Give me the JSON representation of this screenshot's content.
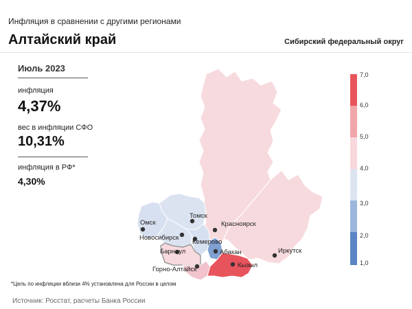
{
  "header": {
    "subtitle": "Инфляция  в сравнении  с другими регионами",
    "title": "Алтайский край",
    "district": "Сибирский федеральный округ"
  },
  "stats": {
    "period": "Июль 2023",
    "inflation_label": "инфляция",
    "inflation_value": "4,37%",
    "weight_label": "вес в инфляции  СФО",
    "weight_value": "10,31%",
    "rf_label": "инфляция  в РФ*",
    "rf_value": "4,30%"
  },
  "footnote": "*Цель по инфляции вблизи 4% установлена для России в целом",
  "source": "Источник: Росстат, расчеты Банка России",
  "legend": {
    "ticks": [
      "7,0",
      "6,0",
      "5,0",
      "4,0",
      "3,0",
      "2,0",
      "1,0"
    ],
    "colors": [
      "#e8545c",
      "#f1a6aa",
      "#f8d8dc",
      "#dde4f1",
      "#9db7dc",
      "#5b84c4"
    ]
  },
  "map": {
    "highlight_color": "#f2c8cf",
    "colors": {
      "krasnoyarsk": "#f7dade",
      "irkutsk": "#f7dade",
      "tyva": "#e8545c",
      "khakassia": "#7fa0d0",
      "kemerovo": "#d7e0f0",
      "novosibirsk": "#dbe3f1",
      "omsk": "#d7e0f0",
      "tomsk": "#dbe3f1",
      "altai_krai": "#f7dade",
      "altai_rep": "#f2c3cc"
    },
    "cities": [
      {
        "name": "Омск",
        "id": "omsk"
      },
      {
        "name": "Томск",
        "id": "tomsk"
      },
      {
        "name": "Новосибирск",
        "id": "novosibirsk"
      },
      {
        "name": "Красноярск",
        "id": "krasnoyarsk"
      },
      {
        "name": "Кемерово",
        "id": "kemerovo"
      },
      {
        "name": "Барнаул",
        "id": "barnaul"
      },
      {
        "name": "Абакан",
        "id": "abakan"
      },
      {
        "name": "Кызыл",
        "id": "kyzyl"
      },
      {
        "name": "Иркутск",
        "id": "irkutsk"
      },
      {
        "name": "Горно-Алтайск",
        "id": "gorno-altaysk"
      }
    ]
  }
}
